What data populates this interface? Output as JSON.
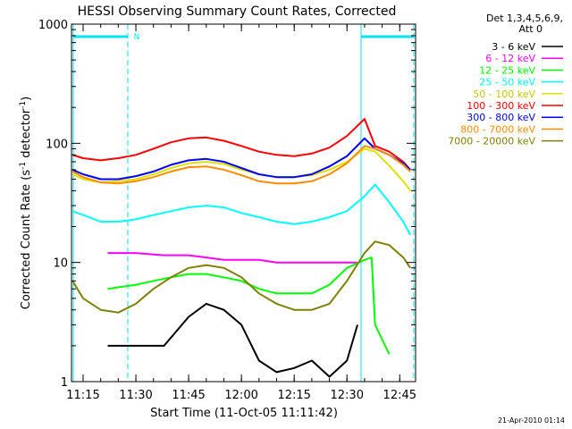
{
  "chart_data": {
    "type": "line",
    "title": "HESSI Observing Summary Count Rates, Corrected",
    "xlabel": "Start Time (11-Oct-05 11:11:42)",
    "ylabel_main": "Corrected Count Rate (s",
    "ylabel_sup1": "-1",
    "ylabel_mid": " detector",
    "ylabel_sup2": "-1",
    "ylabel_end": ")",
    "y_scale": "log",
    "ylim": [
      1,
      1000
    ],
    "xlim": [
      "11:11:42",
      "12:49:30"
    ],
    "x_ticks": [
      "11:15",
      "11:30",
      "11:45",
      "12:00",
      "12:15",
      "12:30",
      "12:45"
    ],
    "y_ticks": [
      "1",
      "10",
      "100",
      "1000"
    ],
    "timestamp": "21-Apr-2010 01:14",
    "legend": {
      "header_line1": "Det 1,3,4,5,6,9,",
      "header_line2": "Att 0",
      "placement": "right"
    },
    "night_marker": "N",
    "series": [
      {
        "name": "3 - 6 keV",
        "color": "#000000",
        "x": [
          "11:22",
          "11:30",
          "11:38",
          "11:45",
          "11:50",
          "11:55",
          "12:00",
          "12:05",
          "12:10",
          "12:15",
          "12:20",
          "12:25",
          "12:30",
          "12:33"
        ],
        "y": [
          2.0,
          2.0,
          2.0,
          3.5,
          4.5,
          4.0,
          3.0,
          1.5,
          1.2,
          1.3,
          1.5,
          1.1,
          1.5,
          3.0
        ]
      },
      {
        "name": "6 - 12 keV",
        "color": "#ff00ff",
        "x": [
          "11:22",
          "11:30",
          "11:38",
          "11:45",
          "11:50",
          "11:55",
          "12:00",
          "12:05",
          "12:10",
          "12:15",
          "12:20",
          "12:25",
          "12:30",
          "12:33"
        ],
        "y": [
          12,
          12,
          11.5,
          11.5,
          11,
          10.5,
          10.5,
          10.5,
          10,
          10,
          10,
          10,
          10,
          10
        ]
      },
      {
        "name": "12 - 25 keV",
        "color": "#00ff00",
        "x": [
          "11:22",
          "11:30",
          "11:35",
          "11:40",
          "11:45",
          "11:50",
          "11:55",
          "12:00",
          "12:05",
          "12:10",
          "12:15",
          "12:20",
          "12:25",
          "12:30",
          "12:35",
          "12:37",
          "12:38",
          "12:42"
        ],
        "y": [
          6,
          6.5,
          7,
          7.5,
          8,
          8,
          7.5,
          7,
          6,
          5.5,
          5.5,
          5.5,
          6.5,
          9,
          10.5,
          11,
          3.0,
          1.7
        ]
      },
      {
        "name": "25 - 50 keV",
        "color": "#00ffff",
        "x": [
          "11:12",
          "11:15",
          "11:20",
          "11:25",
          "11:30",
          "11:35",
          "11:40",
          "11:45",
          "11:50",
          "11:55",
          "12:00",
          "12:05",
          "12:10",
          "12:15",
          "12:20",
          "12:25",
          "12:30",
          "12:35",
          "12:38",
          "12:42",
          "12:46",
          "12:48"
        ],
        "y": [
          27,
          25,
          22,
          22,
          23,
          25,
          27,
          29,
          30,
          29,
          26,
          24,
          22,
          21,
          22,
          24,
          27,
          36,
          45,
          32,
          22,
          17
        ]
      },
      {
        "name": "50 - 100 keV",
        "color": "#e0e000",
        "x": [
          "11:12",
          "11:15",
          "11:20",
          "11:25",
          "11:30",
          "11:35",
          "11:40",
          "11:45",
          "11:50",
          "11:55",
          "12:00",
          "12:05",
          "12:10",
          "12:15",
          "12:20",
          "12:25",
          "12:30",
          "12:35",
          "12:38",
          "12:42",
          "12:46",
          "12:48"
        ],
        "y": [
          55,
          50,
          47,
          48,
          50,
          55,
          62,
          68,
          70,
          67,
          60,
          55,
          52,
          52,
          54,
          60,
          70,
          90,
          85,
          65,
          48,
          40
        ]
      },
      {
        "name": "100 - 300 keV",
        "color": "#ff0000",
        "x": [
          "11:12",
          "11:15",
          "11:20",
          "11:25",
          "11:30",
          "11:35",
          "11:40",
          "11:45",
          "11:50",
          "11:55",
          "12:00",
          "12:05",
          "12:10",
          "12:15",
          "12:20",
          "12:25",
          "12:30",
          "12:35",
          "12:38",
          "12:42",
          "12:46",
          "12:48"
        ],
        "y": [
          80,
          75,
          72,
          75,
          80,
          90,
          102,
          110,
          112,
          105,
          95,
          85,
          80,
          78,
          82,
          92,
          115,
          160,
          95,
          85,
          70,
          60
        ]
      },
      {
        "name": "300 - 800 keV",
        "color": "#0000ff",
        "x": [
          "11:12",
          "11:15",
          "11:20",
          "11:25",
          "11:30",
          "11:35",
          "11:40",
          "11:45",
          "11:50",
          "11:55",
          "12:00",
          "12:05",
          "12:10",
          "12:15",
          "12:20",
          "12:25",
          "12:30",
          "12:35",
          "12:38",
          "12:42",
          "12:46",
          "12:48"
        ],
        "y": [
          60,
          55,
          50,
          50,
          53,
          58,
          66,
          72,
          74,
          70,
          62,
          55,
          52,
          52,
          55,
          64,
          78,
          110,
          90,
          80,
          68,
          60
        ]
      },
      {
        "name": "800 - 7000 keV",
        "color": "#ff8c00",
        "x": [
          "11:12",
          "11:15",
          "11:20",
          "11:25",
          "11:30",
          "11:35",
          "11:40",
          "11:45",
          "11:50",
          "11:55",
          "12:00",
          "12:05",
          "12:10",
          "12:15",
          "12:20",
          "12:25",
          "12:30",
          "12:35",
          "12:38",
          "12:42",
          "12:46",
          "12:48"
        ],
        "y": [
          58,
          52,
          47,
          46,
          48,
          52,
          58,
          63,
          64,
          60,
          54,
          48,
          46,
          46,
          48,
          55,
          68,
          95,
          90,
          80,
          66,
          58
        ]
      },
      {
        "name": "7000 - 20000 keV",
        "color": "#808000",
        "x": [
          "11:12",
          "11:15",
          "11:20",
          "11:25",
          "11:30",
          "11:35",
          "11:40",
          "11:45",
          "11:50",
          "11:55",
          "12:00",
          "12:05",
          "12:10",
          "12:15",
          "12:20",
          "12:25",
          "12:30",
          "12:35",
          "12:38",
          "12:42",
          "12:46",
          "12:48"
        ],
        "y": [
          7,
          5,
          4,
          3.8,
          4.5,
          6,
          7.5,
          9,
          9.5,
          9,
          7.5,
          5.5,
          4.5,
          4,
          4,
          4.5,
          7,
          12,
          15,
          14,
          11,
          9
        ]
      }
    ]
  }
}
